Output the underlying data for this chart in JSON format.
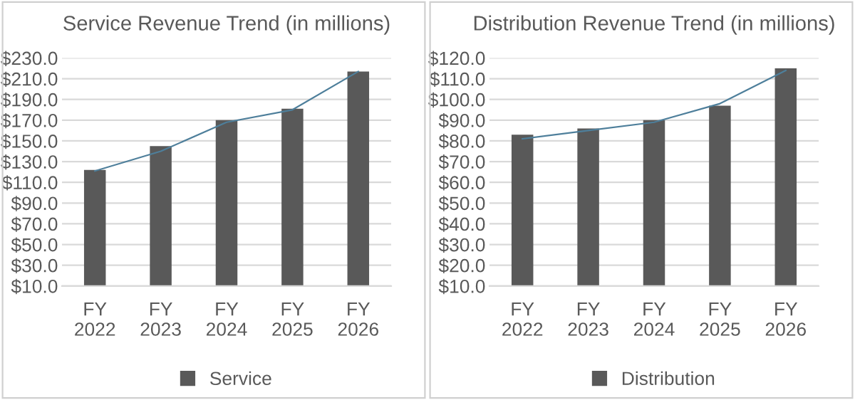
{
  "chart_data": [
    {
      "type": "bar",
      "title": "Service Revenue Trend (in millions)",
      "categories": [
        "FY\n2022",
        "FY\n2023",
        "FY\n2024",
        "FY\n2025",
        "FY\n2026"
      ],
      "series": [
        {
          "name": "Service",
          "color": "#595959",
          "values": [
            122,
            145,
            170,
            181,
            217
          ]
        },
        {
          "type": "line",
          "color": "#4e7f9b",
          "values": [
            121,
            140,
            168,
            180,
            217
          ]
        }
      ],
      "ylim": [
        10,
        230
      ],
      "yticks": [
        {
          "value": 10,
          "label": "$10.0"
        },
        {
          "value": 30,
          "label": "$30.0"
        },
        {
          "value": 50,
          "label": "$50.0"
        },
        {
          "value": 70,
          "label": "$70.0"
        },
        {
          "value": 90,
          "label": "$90.0"
        },
        {
          "value": 110,
          "label": "$110.0"
        },
        {
          "value": 130,
          "label": "$130.0"
        },
        {
          "value": 150,
          "label": "$150.0"
        },
        {
          "value": 170,
          "label": "$170.0"
        },
        {
          "value": 190,
          "label": "$190.0"
        },
        {
          "value": 210,
          "label": "$210.0"
        },
        {
          "value": 230,
          "label": "$230.0"
        }
      ],
      "grid": "y",
      "legend": "bottom"
    },
    {
      "type": "bar",
      "title": "Distribution Revenue Trend (in millions)",
      "categories": [
        "FY\n2022",
        "FY\n2023",
        "FY\n2024",
        "FY\n2025",
        "FY\n2026"
      ],
      "series": [
        {
          "name": "Distribution",
          "color": "#595959",
          "values": [
            83,
            86,
            90,
            97,
            115
          ]
        },
        {
          "type": "line",
          "color": "#4e7f9b",
          "values": [
            81,
            85,
            89,
            98,
            114
          ]
        }
      ],
      "ylim": [
        10,
        120
      ],
      "yticks": [
        {
          "value": 10,
          "label": "$10.0"
        },
        {
          "value": 20,
          "label": "$20.0"
        },
        {
          "value": 30,
          "label": "$30.0"
        },
        {
          "value": 40,
          "label": "$40.0"
        },
        {
          "value": 50,
          "label": "$50.0"
        },
        {
          "value": 60,
          "label": "$60.0"
        },
        {
          "value": 70,
          "label": "$70.0"
        },
        {
          "value": 80,
          "label": "$80.0"
        },
        {
          "value": 90,
          "label": "$90.0"
        },
        {
          "value": 100,
          "label": "$100.0"
        },
        {
          "value": 110,
          "label": "$110.0"
        },
        {
          "value": 120,
          "label": "$120.0"
        }
      ],
      "grid": "y",
      "legend": "bottom"
    }
  ]
}
